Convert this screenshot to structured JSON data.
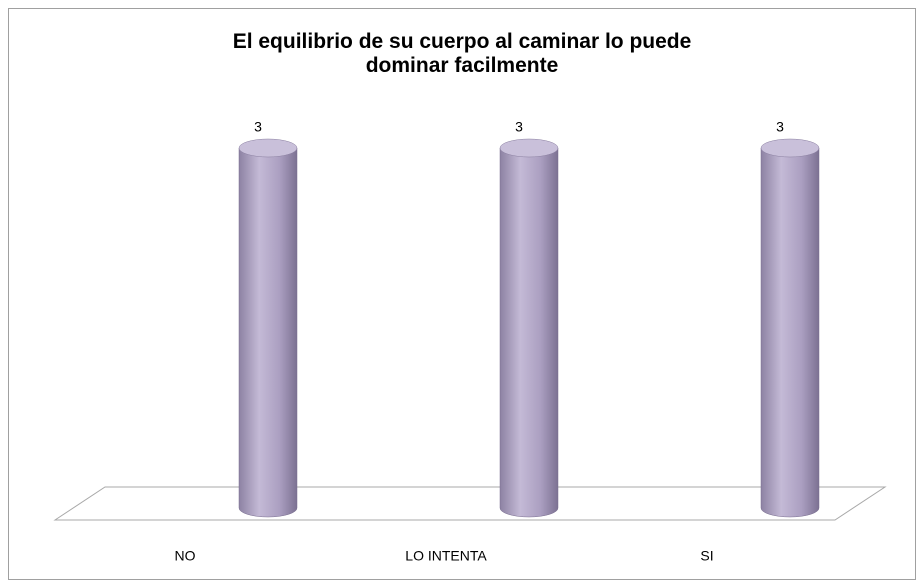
{
  "chart_data": {
    "type": "cylinder",
    "title": "El equilibrio de su cuerpo al caminar lo puede dominar facilmente",
    "categories": [
      "NO",
      "LO INTENTA",
      "SI"
    ],
    "values": [
      3,
      3,
      3
    ],
    "color": "#b3a8c8"
  }
}
